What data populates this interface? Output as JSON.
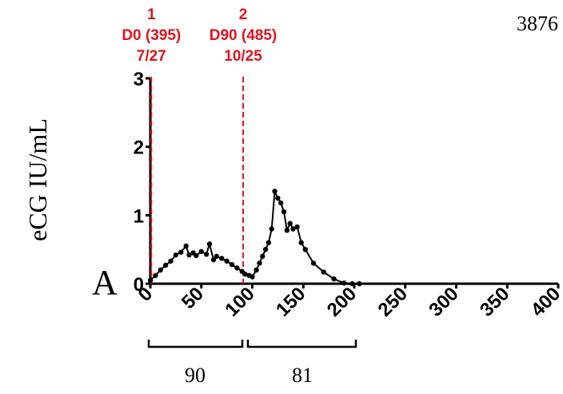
{
  "chart_data": {
    "type": "line",
    "corner_label": "3876",
    "panel_label": "A",
    "ylabel": "eCG IU/mL",
    "x": [
      0,
      5,
      10,
      15,
      20,
      25,
      30,
      35,
      38,
      42,
      45,
      50,
      55,
      58,
      62,
      65,
      70,
      75,
      80,
      85,
      90,
      93,
      97,
      100,
      104,
      107,
      110,
      113,
      116,
      119,
      122,
      125,
      128,
      131,
      134,
      137,
      140,
      144,
      148,
      152,
      160,
      170,
      180,
      190,
      198,
      205
    ],
    "series": [
      {
        "name": "eCG",
        "color": "#000000",
        "values": [
          0.05,
          0.12,
          0.2,
          0.27,
          0.33,
          0.42,
          0.46,
          0.55,
          0.42,
          0.45,
          0.41,
          0.47,
          0.43,
          0.58,
          0.35,
          0.4,
          0.37,
          0.33,
          0.28,
          0.23,
          0.18,
          0.14,
          0.12,
          0.1,
          0.2,
          0.3,
          0.4,
          0.5,
          0.6,
          0.8,
          1.35,
          1.25,
          1.18,
          1.05,
          0.78,
          0.88,
          0.8,
          0.83,
          0.6,
          0.5,
          0.3,
          0.17,
          0.07,
          0.01,
          0,
          0
        ]
      }
    ],
    "xlim": [
      0,
      400
    ],
    "xticks": [
      0,
      50,
      100,
      150,
      200,
      250,
      300,
      350,
      400
    ],
    "ylim": [
      0,
      3
    ],
    "yticks": [
      0,
      1,
      2,
      3
    ],
    "grid": false,
    "annotations": [
      {
        "x": 1,
        "color": "#e0141e",
        "lines": [
          "1",
          "D0 (395)",
          "7/27"
        ]
      },
      {
        "x": 91,
        "color": "#e0141e",
        "lines": [
          "2",
          "D90 (485)",
          "10/25"
        ]
      }
    ],
    "brackets": [
      "90",
      "81"
    ]
  }
}
